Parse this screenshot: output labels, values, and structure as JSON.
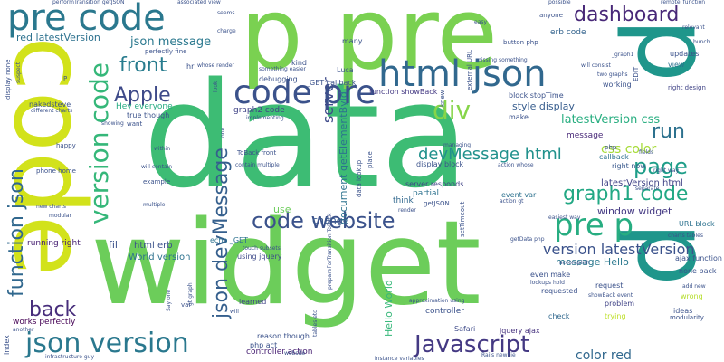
{
  "words": [
    {
      "text": "data",
      "color": "#3dbc74"
    },
    {
      "text": "widget",
      "color": "#6ccd5a"
    },
    {
      "text": "p pre",
      "color": "#7ad151"
    },
    {
      "text": "code",
      "color": "#d2e21b"
    },
    {
      "text": "p",
      "color": "#1f968b"
    },
    {
      "text": "p",
      "color": "#1f968b"
    },
    {
      "text": "pre code",
      "color": "#2a788e"
    },
    {
      "text": "html json",
      "color": "#31688e"
    },
    {
      "text": "code pre",
      "color": "#3b528b"
    },
    {
      "text": "dashboard",
      "color": "#482878"
    },
    {
      "text": "json version",
      "color": "#2a788e"
    },
    {
      "text": "Javascript",
      "color": "#443983"
    },
    {
      "text": "code website",
      "color": "#3b528b"
    },
    {
      "text": "pre p",
      "color": "#27ad81"
    },
    {
      "text": "graph1 code",
      "color": "#22a884"
    },
    {
      "text": "devMessage html",
      "color": "#21918c"
    },
    {
      "text": "version code",
      "color": "#35b779"
    },
    {
      "text": "json devMessage",
      "color": "#355f8d"
    },
    {
      "text": "function json",
      "color": "#31688e"
    },
    {
      "text": "front",
      "color": "#287c8e"
    },
    {
      "text": "back",
      "color": "#472d7b"
    },
    {
      "text": "Apple",
      "color": "#3e4a89"
    },
    {
      "text": "div",
      "color": "#86d549"
    },
    {
      "text": "page",
      "color": "#1f9e89"
    },
    {
      "text": "run",
      "color": "#2c718e"
    },
    {
      "text": "css color",
      "color": "#a5db36"
    },
    {
      "text": "json message",
      "color": "#2a788e"
    },
    {
      "text": "latestVersion css",
      "color": "#28ae80"
    },
    {
      "text": "version latestVersion",
      "color": "#3b528b"
    },
    {
      "text": "color red",
      "color": "#31688e"
    },
    {
      "text": "server",
      "color": "#3e4a89"
    },
    {
      "text": "red latestVersion",
      "color": "#2c718e"
    },
    {
      "text": "window widget",
      "color": "#443983"
    },
    {
      "text": "document getElementById",
      "color": "#2c728e"
    },
    {
      "text": "style display",
      "color": "#365c8d"
    },
    {
      "text": "message Hello",
      "color": "#2a788e"
    },
    {
      "text": "Hey everyone",
      "color": "#25ab82"
    },
    {
      "text": "World version",
      "color": "#2c718e"
    },
    {
      "text": "html erb",
      "color": "#3b528b"
    },
    {
      "text": "latestVersion html",
      "color": "#414487"
    },
    {
      "text": "Hello World",
      "color": "#35b779"
    },
    {
      "text": "graph2 code",
      "color": "#414487"
    },
    {
      "text": "erb code",
      "color": "#33638d"
    },
    {
      "text": "right now",
      "color": "#38588c"
    },
    {
      "text": "fill",
      "color": "#3b528b"
    },
    {
      "text": "change",
      "color": "#38588c"
    },
    {
      "text": "use",
      "color": "#6ccd5a"
    },
    {
      "text": "running right",
      "color": "#482173"
    },
    {
      "text": "nakedsteve",
      "color": "#3b528b"
    },
    {
      "text": "works perfectly",
      "color": "#440154"
    },
    {
      "text": "think",
      "color": "#31688e"
    },
    {
      "text": "partial",
      "color": "#2c718e"
    },
    {
      "text": "controller action",
      "color": "#482173"
    },
    {
      "text": "controller",
      "color": "#3b528b"
    },
    {
      "text": "jquery ajax",
      "color": "#46327e"
    },
    {
      "text": "Safari",
      "color": "#3e4a89"
    },
    {
      "text": "message",
      "color": "#482878"
    },
    {
      "text": "server responds",
      "color": "#414487"
    },
    {
      "text": "display block",
      "color": "#3b528b"
    },
    {
      "text": "callback",
      "color": "#2c718e"
    },
    {
      "text": "block stopTime",
      "color": "#3b528b"
    },
    {
      "text": "function showBack",
      "color": "#443983"
    },
    {
      "text": "echo _GET",
      "color": "#2c718e"
    },
    {
      "text": "using jquery",
      "color": "#3e4a89"
    },
    {
      "text": "learned",
      "color": "#414487"
    },
    {
      "text": "reason though",
      "color": "#3b528b"
    },
    {
      "text": "php act",
      "color": "#3b528b"
    },
    {
      "text": "event var",
      "color": "#2c718e"
    },
    {
      "text": "request",
      "color": "#3b528b"
    },
    {
      "text": "even make",
      "color": "#3b528b"
    },
    {
      "text": "requested",
      "color": "#3b528b"
    },
    {
      "text": "problem",
      "color": "#414487"
    },
    {
      "text": "check",
      "color": "#31688e"
    },
    {
      "text": "trying",
      "color": "#bddf26"
    },
    {
      "text": "ideas",
      "color": "#3b528b"
    },
    {
      "text": "wrong",
      "color": "#b5de2b"
    },
    {
      "text": "modularity",
      "color": "#3b528b"
    },
    {
      "text": "URL block",
      "color": "#2c718e"
    },
    {
      "text": "ajax function",
      "color": "#3b528b"
    },
    {
      "text": "none back",
      "color": "#3b528b"
    },
    {
      "text": "right design",
      "color": "#414487"
    },
    {
      "text": "updates",
      "color": "#3b528b"
    },
    {
      "text": "view",
      "color": "#2c718e"
    },
    {
      "text": "working",
      "color": "#3b528b"
    },
    {
      "text": "EDIT",
      "color": "#3b528b"
    },
    {
      "text": "kind",
      "color": "#3b528b"
    },
    {
      "text": "debugging",
      "color": "#3b528b"
    },
    {
      "text": "_GET callback",
      "color": "#3b528b"
    },
    {
      "text": "Luca",
      "color": "#3b528b"
    },
    {
      "text": "many",
      "color": "#3b528b"
    },
    {
      "text": "anyone",
      "color": "#3b528b"
    },
    {
      "text": "button php",
      "color": "#3b528b"
    },
    {
      "text": "make",
      "color": "#3b528b"
    },
    {
      "text": "perfectly fine",
      "color": "#3b528b"
    },
    {
      "text": "true though",
      "color": "#3b528b"
    },
    {
      "text": "want",
      "color": "#3b528b"
    },
    {
      "text": "phone home",
      "color": "#3b528b"
    },
    {
      "text": "happy",
      "color": "#3b528b"
    },
    {
      "text": "example",
      "color": "#3b528b"
    },
    {
      "text": "multiple",
      "color": "#3b528b"
    },
    {
      "text": "will contain",
      "color": "#3b528b"
    },
    {
      "text": "within",
      "color": "#3b528b"
    },
    {
      "text": "ToBack front",
      "color": "#3b528b"
    },
    {
      "text": "display none",
      "color": "#3b528b"
    },
    {
      "text": "different charts",
      "color": "#3b528b"
    },
    {
      "text": "another",
      "color": "#3b528b"
    },
    {
      "text": "index",
      "color": "#3b528b"
    },
    {
      "text": "var",
      "color": "#3b528b"
    },
    {
      "text": "setTimeout",
      "color": "#3b528b"
    },
    {
      "text": "getJSON",
      "color": "#3b528b"
    },
    {
      "text": "render",
      "color": "#3b528b"
    },
    {
      "text": "place",
      "color": "#3b528b"
    },
    {
      "text": "knew",
      "color": "#3b528b"
    },
    {
      "text": "external URL",
      "color": "#3b528b"
    },
    {
      "text": "data lookup",
      "color": "#3b528b"
    },
    {
      "text": "prepareForTransition ToBack",
      "color": "#3b528b"
    },
    {
      "text": "php",
      "color": "#3b528b"
    },
    {
      "text": "fields",
      "color": "#3b528b"
    },
    {
      "text": "right way",
      "color": "#3b528b"
    },
    {
      "text": "easiest way",
      "color": "#3b528b"
    },
    {
      "text": "action gt",
      "color": "#3b528b"
    },
    {
      "text": "separate",
      "color": "#3b528b"
    },
    {
      "text": "charts tables",
      "color": "#3b528b"
    },
    {
      "text": "add new",
      "color": "#3b528b"
    },
    {
      "text": "showBack event",
      "color": "#3b528b"
    },
    {
      "text": "lookups hold",
      "color": "#3b528b"
    },
    {
      "text": "accomplish",
      "color": "#3b528b"
    },
    {
      "text": "approximation using",
      "color": "#3b528b"
    },
    {
      "text": "instance variables",
      "color": "#3b528b"
    },
    {
      "text": "Rails newbie",
      "color": "#3b528b"
    },
    {
      "text": "website",
      "color": "#3b528b"
    },
    {
      "text": "infrastructure guy",
      "color": "#3b528b"
    },
    {
      "text": "performTransition getJSON",
      "color": "#3b528b"
    },
    {
      "text": "associated view",
      "color": "#3b528b"
    },
    {
      "text": "seems",
      "color": "#3b528b"
    },
    {
      "text": "charge",
      "color": "#3b528b"
    },
    {
      "text": "easy",
      "color": "#3b528b"
    },
    {
      "text": "possible",
      "color": "#3b528b"
    },
    {
      "text": "remote_function",
      "color": "#3b528b"
    },
    {
      "text": "relevant",
      "color": "#3b528b"
    },
    {
      "text": "bunch",
      "color": "#3b528b"
    },
    {
      "text": "missing something",
      "color": "#3b528b"
    },
    {
      "text": "will consist",
      "color": "#3b528b"
    },
    {
      "text": "two graphs",
      "color": "#3b528b"
    },
    {
      "text": "_graph1",
      "color": "#3b528b"
    },
    {
      "text": "something easier",
      "color": "#3b528b"
    },
    {
      "text": "whose render",
      "color": "#3b528b"
    },
    {
      "text": "implementing",
      "color": "#3b528b"
    },
    {
      "text": "showing",
      "color": "#3b528b"
    },
    {
      "text": "contain multiple",
      "color": "#3b528b"
    },
    {
      "text": "modular",
      "color": "#3b528b"
    },
    {
      "text": "new charts",
      "color": "#3b528b"
    },
    {
      "text": "action whose",
      "color": "#3b528b"
    },
    {
      "text": "managing",
      "color": "#3b528b"
    },
    {
      "text": "touch subsets",
      "color": "#3b528b"
    },
    {
      "text": "tables etc",
      "color": "#3b528b"
    },
    {
      "text": "getData php",
      "color": "#3b528b"
    },
    {
      "text": "suspect",
      "color": "#3b528b"
    },
    {
      "text": "hr",
      "color": "#3b528b"
    },
    {
      "text": "look",
      "color": "#3b528b"
    },
    {
      "text": "one",
      "color": "#3b528b"
    },
    {
      "text": "P",
      "color": "#3b528b"
    },
    {
      "text": "gt graph",
      "color": "#3b528b"
    },
    {
      "text": "Say one",
      "color": "#3b528b"
    },
    {
      "text": "will",
      "color": "#3b528b"
    }
  ]
}
